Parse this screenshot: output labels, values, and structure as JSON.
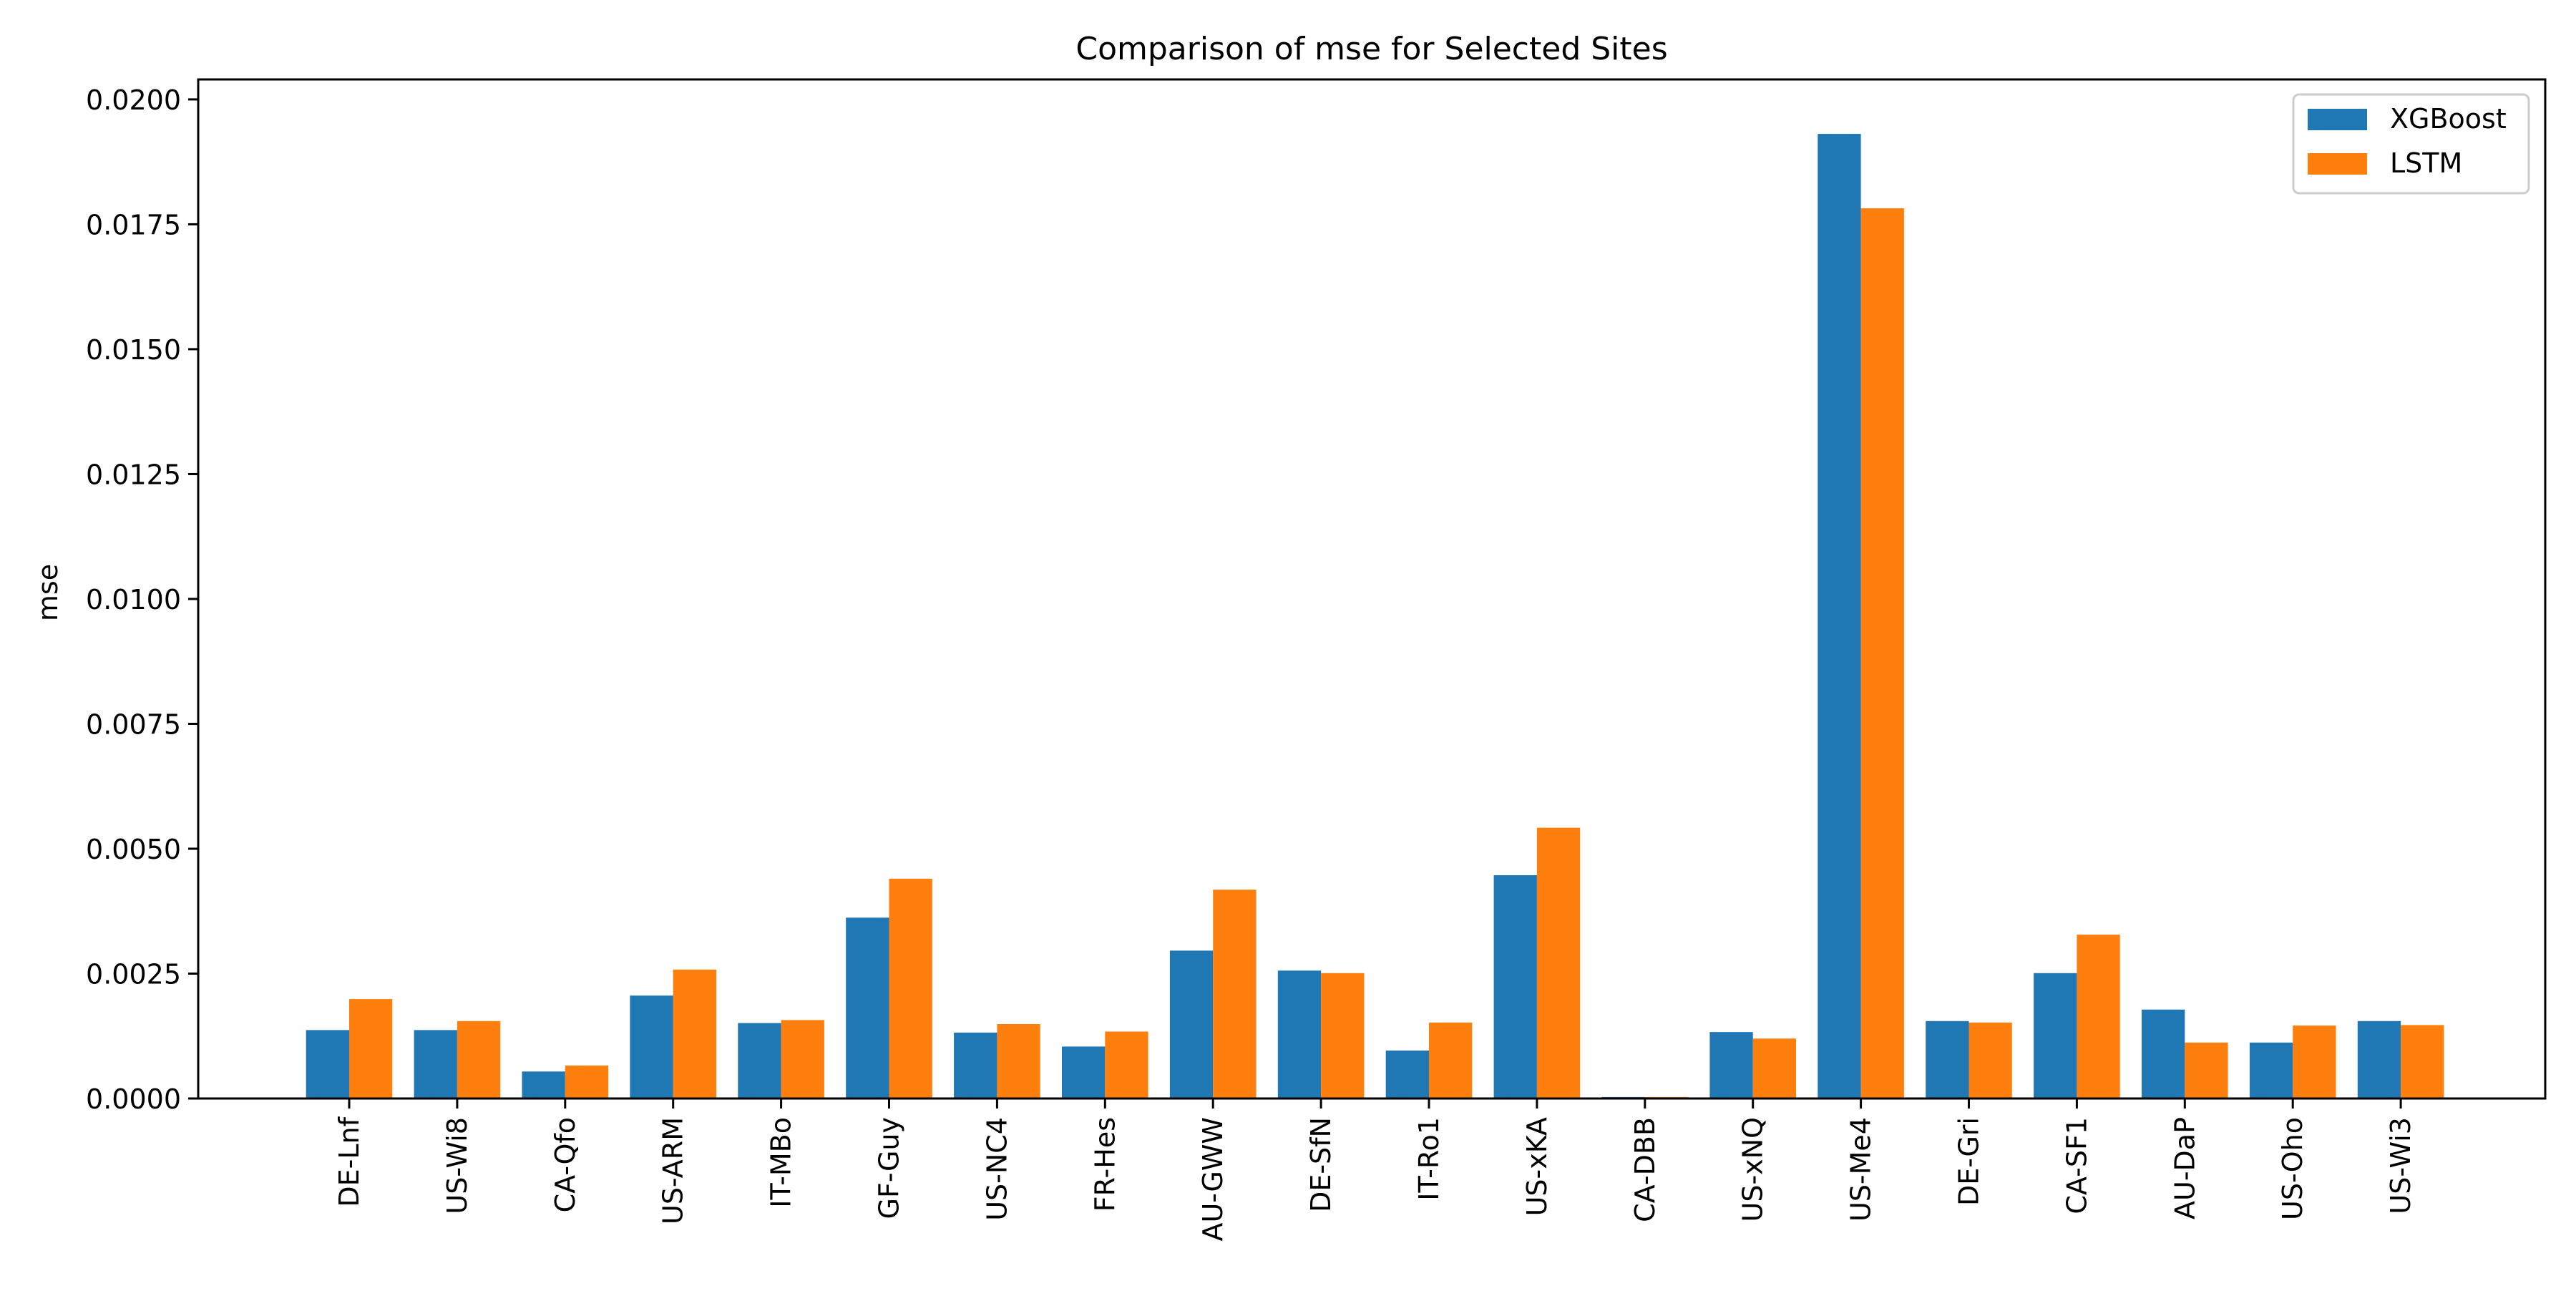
{
  "chart_data": {
    "type": "bar",
    "title": "Comparison of mse for Selected Sites",
    "xlabel": "",
    "ylabel": "mse",
    "ylim": [
      0,
      0.0204
    ],
    "yticks": [
      "0.0000",
      "0.0025",
      "0.0050",
      "0.0075",
      "0.0100",
      "0.0125",
      "0.0150",
      "0.0175",
      "0.0200"
    ],
    "grid": false,
    "legend_position": "top-right",
    "categories": [
      "DE-Lnf",
      "US-Wi8",
      "CA-Qfo",
      "US-ARM",
      "IT-MBo",
      "GF-Guy",
      "US-NC4",
      "FR-Hes",
      "AU-GWW",
      "DE-SfN",
      "IT-Ro1",
      "US-xKA",
      "CA-DBB",
      "US-xNQ",
      "US-Me4",
      "DE-Gri",
      "CA-SF1",
      "AU-DaP",
      "US-Oho",
      "US-Wi3"
    ],
    "series": [
      {
        "name": "XGBoost",
        "color": "#1f77b4",
        "values": [
          0.00137,
          0.00137,
          0.00054,
          0.00206,
          0.00151,
          0.00362,
          0.00132,
          0.00104,
          0.00296,
          0.00256,
          0.00096,
          0.00447,
          3e-05,
          0.00133,
          0.01931,
          0.00155,
          0.00251,
          0.00178,
          0.00112,
          0.00155
        ]
      },
      {
        "name": "LSTM",
        "color": "#ff7f0e",
        "values": [
          0.00199,
          0.00155,
          0.00066,
          0.00258,
          0.00157,
          0.0044,
          0.00149,
          0.00134,
          0.00418,
          0.00251,
          0.00152,
          0.00542,
          3e-05,
          0.0012,
          0.01782,
          0.00152,
          0.00328,
          0.00112,
          0.00146,
          0.00147
        ]
      }
    ]
  }
}
